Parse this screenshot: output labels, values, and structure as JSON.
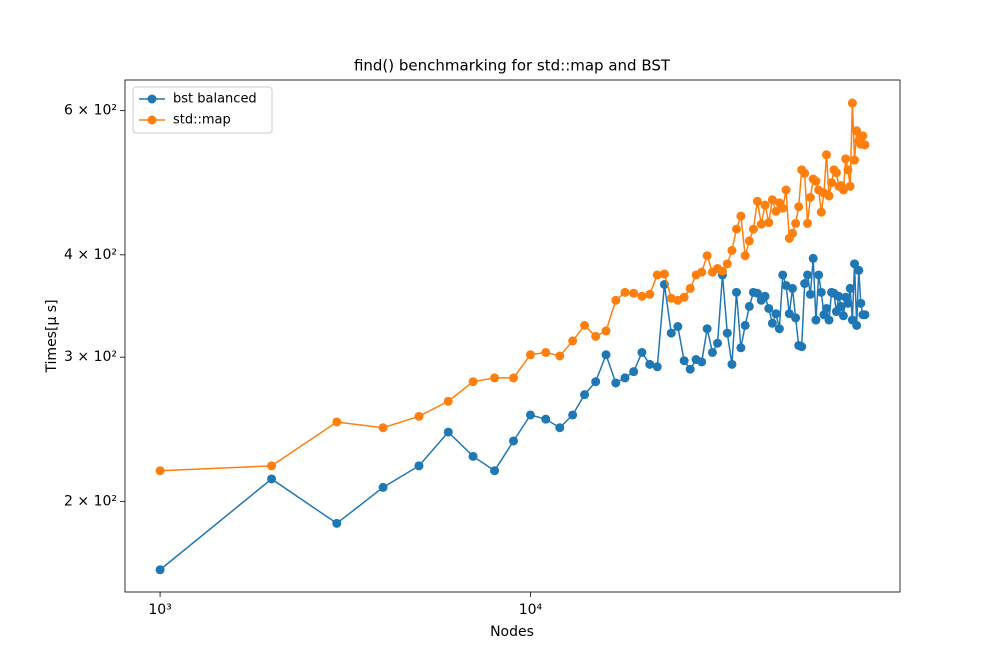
{
  "chart_data": {
    "type": "line",
    "title": "find() benchmarking for std::map and BST",
    "xlabel": "Nodes",
    "ylabel": "Times[μ s]",
    "xscale": "log",
    "yscale": "log",
    "legend": "upper left",
    "x": [
      1000,
      2000,
      3000,
      4000,
      5000,
      6000,
      7000,
      8000,
      9000,
      10000,
      11000,
      12000,
      13000,
      14000,
      15000,
      16000,
      17000,
      18000,
      19000,
      20000,
      21000,
      22000,
      23000,
      24000,
      25000,
      26000,
      27000,
      28000,
      29000,
      30000,
      31000,
      32000,
      33000,
      34000,
      35000,
      36000,
      37000,
      38000,
      39000,
      40000,
      41000,
      42000,
      43000,
      44000,
      45000,
      46000,
      47000,
      48000,
      49000,
      50000,
      51000,
      52000,
      53000,
      54000,
      55000,
      56000,
      57000,
      58000,
      59000,
      60000,
      61000,
      62000,
      63000,
      64000,
      65000,
      66000,
      67000,
      68000,
      69000,
      70000,
      71000,
      72000,
      73000,
      74000,
      75000,
      76000,
      77000,
      78000,
      79000,
      80000
    ],
    "series": [
      {
        "name": "bst balanced",
        "color": "#1f77b4",
        "values": [
          165,
          213,
          188,
          208,
          221,
          243,
          227,
          218,
          237,
          255,
          252,
          246,
          255,
          270,
          280,
          302,
          279,
          283,
          288,
          304,
          294,
          292,
          368,
          321,
          327,
          297,
          290,
          298,
          296,
          325,
          304,
          312,
          378,
          321,
          294,
          360,
          308,
          328,
          346,
          360,
          359,
          352,
          356,
          344,
          330,
          339,
          325,
          378,
          367,
          339,
          364,
          335,
          310,
          309,
          369,
          378,
          358,
          396,
          333,
          378,
          360,
          338,
          344,
          333,
          360,
          359,
          341,
          356,
          346,
          337,
          355,
          349,
          364,
          333,
          390,
          328,
          383,
          349,
          338,
          338
        ]
      },
      {
        "name": "std::map",
        "color": "#ff7f0e",
        "values": [
          218,
          221,
          250,
          246,
          254,
          265,
          280,
          283,
          283,
          302,
          304,
          301,
          314,
          328,
          318,
          323,
          352,
          360,
          359,
          356,
          358,
          378,
          379,
          354,
          352,
          355,
          364,
          378,
          381,
          399,
          381,
          385,
          382,
          390,
          405,
          430,
          446,
          399,
          416,
          430,
          465,
          436,
          460,
          438,
          467,
          452,
          463,
          456,
          480,
          419,
          425,
          437,
          458,
          508,
          503,
          437,
          470,
          495,
          492,
          480,
          451,
          476,
          530,
          472,
          490,
          508,
          504,
          485,
          486,
          480,
          524,
          508,
          485,
          613,
          522,
          567,
          551,
          546,
          559,
          545
        ]
      }
    ],
    "xlim": [
      804,
      99500
    ],
    "ylim": [
      155,
      654
    ],
    "xticks": [
      {
        "value": 1000,
        "label": "10³"
      },
      {
        "value": 10000,
        "label": "10⁴"
      }
    ],
    "yticks": [
      {
        "value": 200,
        "label": "2 × 10²"
      },
      {
        "value": 300,
        "label": "3 × 10²"
      },
      {
        "value": 400,
        "label": "4 × 10²"
      },
      {
        "value": 600,
        "label": "6 × 10²"
      }
    ]
  }
}
